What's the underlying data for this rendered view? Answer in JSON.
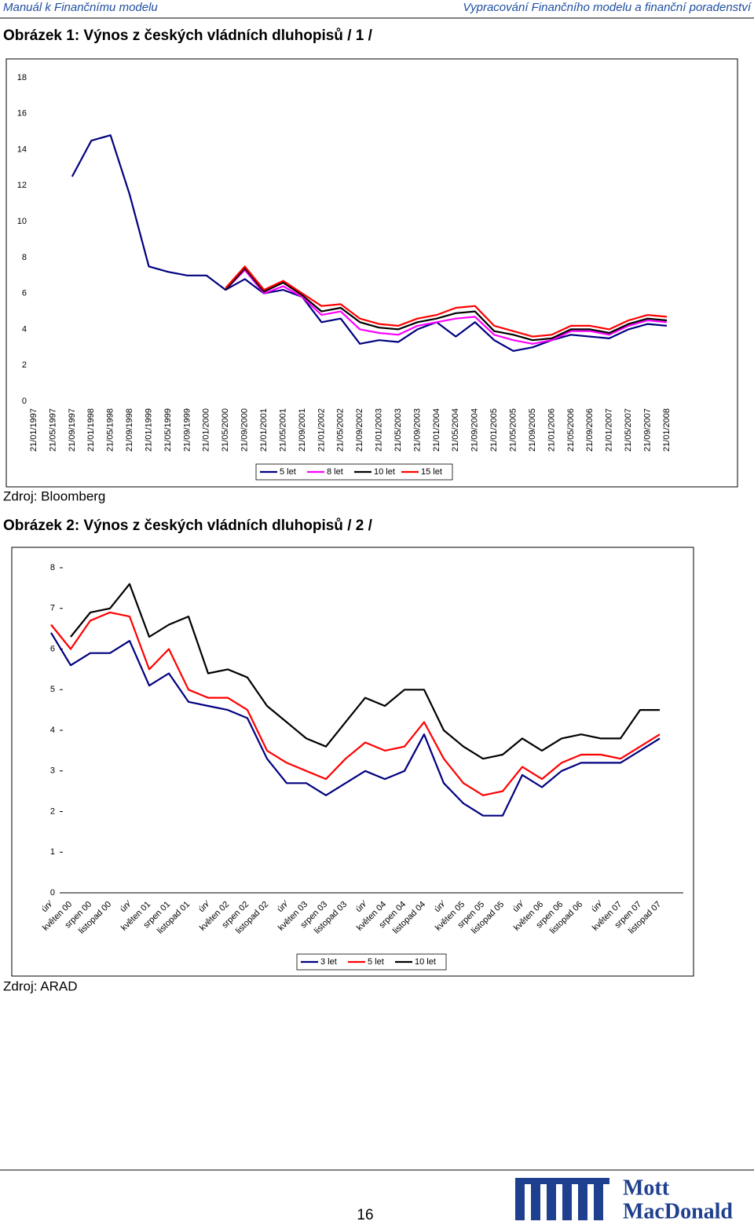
{
  "header": {
    "left": "Manuál k Finančnímu modelu",
    "right": "Vypracování Finančního modelu a finanční poradenství"
  },
  "figure1": {
    "caption": "Obrázek 1: Výnos z českých vládních dluhopisů / 1 /",
    "source": "Zdroj: Bloomberg"
  },
  "figure2": {
    "caption": "Obrázek 2: Výnos z českých vládních dluhopisů / 2 /",
    "source": "Zdroj: ARAD"
  },
  "footer": {
    "page_number": "16",
    "logo_line1": "Mott",
    "logo_line2": "MacDonald"
  },
  "chart_data": [
    {
      "type": "line",
      "legend": "bottom",
      "x_label_rotation": -90,
      "categories": [
        "21/01/1997",
        "21/05/1997",
        "21/09/1997",
        "21/01/1998",
        "21/05/1998",
        "21/09/1998",
        "21/01/1999",
        "21/05/1999",
        "21/09/1999",
        "21/01/2000",
        "21/05/2000",
        "21/09/2000",
        "21/01/2001",
        "21/05/2001",
        "21/09/2001",
        "21/01/2002",
        "21/05/2002",
        "21/09/2002",
        "21/01/2003",
        "21/05/2003",
        "21/09/2003",
        "21/01/2004",
        "21/05/2004",
        "21/09/2004",
        "21/01/2005",
        "21/05/2005",
        "21/09/2005",
        "21/01/2006",
        "21/05/2006",
        "21/09/2006",
        "21/01/2007",
        "21/05/2007",
        "21/09/2007",
        "21/01/2008"
      ],
      "ylim": [
        0,
        18
      ],
      "yticks": [
        0,
        2,
        4,
        6,
        8,
        10,
        12,
        14,
        16,
        18
      ],
      "series": [
        {
          "name": "5 let",
          "color": "#000080",
          "values": [
            null,
            null,
            12.5,
            14.5,
            14.8,
            11.5,
            7.5,
            7.2,
            7.0,
            7.0,
            6.2,
            6.8,
            6.0,
            6.2,
            5.8,
            4.4,
            4.6,
            3.2,
            3.4,
            3.3,
            4.0,
            4.4,
            3.6,
            4.4,
            3.4,
            2.8,
            3.0,
            3.4,
            3.7,
            3.6,
            3.5,
            4.0,
            4.3,
            4.2
          ]
        },
        {
          "name": "8 let",
          "color": "#ff00ff",
          "values": [
            null,
            null,
            null,
            null,
            null,
            null,
            null,
            null,
            null,
            null,
            6.2,
            7.3,
            6.0,
            6.4,
            5.8,
            4.8,
            5.0,
            4.0,
            3.8,
            3.7,
            4.2,
            4.4,
            4.6,
            4.7,
            3.7,
            3.4,
            3.2,
            3.4,
            3.9,
            3.9,
            3.7,
            4.2,
            4.5,
            4.4
          ]
        },
        {
          "name": "10 let",
          "color": "#000000",
          "values": [
            null,
            null,
            null,
            null,
            null,
            null,
            null,
            null,
            null,
            null,
            6.2,
            7.4,
            6.1,
            6.6,
            5.9,
            5.0,
            5.2,
            4.4,
            4.1,
            4.0,
            4.4,
            4.6,
            4.9,
            5.0,
            3.9,
            3.7,
            3.4,
            3.5,
            4.0,
            4.0,
            3.8,
            4.3,
            4.6,
            4.5
          ]
        },
        {
          "name": "15 let",
          "color": "#ff0000",
          "values": [
            null,
            null,
            null,
            null,
            null,
            null,
            null,
            null,
            null,
            null,
            6.3,
            7.5,
            6.2,
            6.7,
            6.0,
            5.3,
            5.4,
            4.6,
            4.3,
            4.2,
            4.6,
            4.8,
            5.2,
            5.3,
            4.2,
            3.9,
            3.6,
            3.7,
            4.2,
            4.2,
            4.0,
            4.5,
            4.8,
            4.7
          ]
        }
      ]
    },
    {
      "type": "line",
      "legend": "bottom",
      "x_label_rotation": -45,
      "categories": [
        "ún⁄",
        "květen 00",
        "srpen 00",
        "listopad 00",
        "ún⁄",
        "květen 01",
        "srpen 01",
        "listopad 01",
        "ún⁄",
        "květen 02",
        "srpen 02",
        "listopad 02",
        "ún⁄",
        "květen 03",
        "srpen 03",
        "listopad 03",
        "ún⁄",
        "květen 04",
        "srpen 04",
        "listopad 04",
        "ún⁄",
        "květen 05",
        "srpen 05",
        "listopad 05",
        "ún⁄",
        "květen 06",
        "srpen 06",
        "listopad 06",
        "ún⁄",
        "květen 07",
        "srpen 07",
        "listopad 07"
      ],
      "ylim": [
        0,
        8
      ],
      "yticks": [
        0,
        1,
        2,
        3,
        4,
        5,
        6,
        7,
        8
      ],
      "series": [
        {
          "name": "3 let",
          "color": "#000080",
          "values": [
            6.4,
            5.6,
            5.9,
            5.9,
            6.2,
            5.1,
            5.4,
            4.7,
            4.6,
            4.5,
            4.3,
            3.3,
            2.7,
            2.7,
            2.4,
            2.7,
            3.0,
            2.8,
            3.0,
            3.9,
            2.7,
            2.2,
            1.9,
            1.9,
            2.9,
            2.6,
            3.0,
            3.2,
            3.2,
            3.2,
            3.5,
            3.8
          ]
        },
        {
          "name": "5 let",
          "color": "#ff0000",
          "values": [
            6.6,
            6.0,
            6.7,
            6.9,
            6.8,
            5.5,
            6.0,
            5.0,
            4.8,
            4.8,
            4.5,
            3.5,
            3.2,
            3.0,
            2.8,
            3.3,
            3.7,
            3.5,
            3.6,
            4.2,
            3.3,
            2.7,
            2.4,
            2.5,
            3.1,
            2.8,
            3.2,
            3.4,
            3.4,
            3.3,
            3.6,
            3.9
          ]
        },
        {
          "name": "10 let",
          "color": "#000000",
          "values": [
            null,
            6.3,
            6.9,
            7.0,
            7.6,
            6.3,
            6.6,
            6.8,
            5.4,
            5.5,
            5.3,
            4.6,
            4.2,
            3.8,
            3.6,
            4.2,
            4.8,
            4.6,
            5.0,
            5.0,
            4.0,
            3.6,
            3.3,
            3.4,
            3.8,
            3.5,
            3.8,
            3.9,
            3.8,
            3.8,
            4.5,
            4.5
          ]
        }
      ]
    }
  ]
}
